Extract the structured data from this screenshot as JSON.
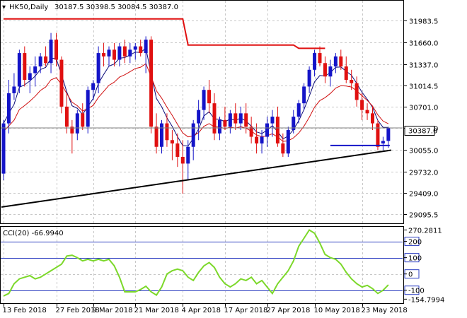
{
  "header": {
    "symbol_label": "HK50,Daily",
    "ohlc_label": "30187.5 30398.5 30084.5 30387.0"
  },
  "price_axis": {
    "ticks": [
      "31983.5",
      "31660.0",
      "31337.0",
      "31014.5",
      "30701.0",
      "30387.0",
      "30055.0",
      "29732.0",
      "29409.0",
      "29095.5"
    ],
    "current_price_label": "30387.0"
  },
  "cci_panel": {
    "title": "CCI(20) -66.9940",
    "axis_labels": [
      "270.2811",
      "200",
      "100",
      "0",
      "-100",
      "-154.7994"
    ]
  },
  "time_axis": {
    "labels": [
      "13 Feb 2018",
      "27 Feb 2018",
      "9 Mar 2018",
      "21 Mar 2018",
      "4 Apr 2018",
      "17 Apr 2018",
      "27 Apr 2018",
      "10 May 2018",
      "23 May 2018"
    ]
  },
  "colors": {
    "bull": "#1414c8",
    "bear": "#e01010",
    "grid": "#c8c8c8",
    "cci_line": "#7cd82a",
    "cci_level": "#2a3cc0",
    "ma_fast": "#0a0a78",
    "ma_slow": "#d01010",
    "upper_line": "#e01010",
    "trend_line": "#000000",
    "support_line": "#1414c8"
  },
  "chart_data": {
    "type": "candlestick",
    "title": "",
    "price_range": [
      29000,
      32250
    ],
    "cci_range": [
      -175,
      285
    ],
    "dates": [
      "13 Feb 2018",
      "27 Feb 2018",
      "9 Mar 2018",
      "21 Mar 2018",
      "4 Apr 2018",
      "17 Apr 2018",
      "27 Apr 2018",
      "10 May 2018",
      "23 May 2018"
    ],
    "candles": [
      [
        29700,
        30500,
        29600,
        30450
      ],
      [
        30450,
        31100,
        30300,
        30900
      ],
      [
        30900,
        31200,
        30800,
        31000
      ],
      [
        31000,
        31550,
        30900,
        31500
      ],
      [
        31500,
        31600,
        31000,
        31100
      ],
      [
        31100,
        31300,
        30900,
        31200
      ],
      [
        31200,
        31450,
        31000,
        31300
      ],
      [
        31300,
        31500,
        31200,
        31450
      ],
      [
        31450,
        31600,
        31300,
        31350
      ],
      [
        31350,
        31800,
        31200,
        31700
      ],
      [
        31700,
        31800,
        31300,
        31400
      ],
      [
        31400,
        31450,
        30600,
        30700
      ],
      [
        30700,
        30900,
        30300,
        30400
      ],
      [
        30400,
        30500,
        30000,
        30300
      ],
      [
        30300,
        30650,
        30200,
        30600
      ],
      [
        30600,
        30750,
        30350,
        30400
      ],
      [
        30400,
        31000,
        30300,
        30950
      ],
      [
        30950,
        31100,
        30800,
        31050
      ],
      [
        31050,
        31600,
        30900,
        31500
      ],
      [
        31500,
        31650,
        31300,
        31450
      ],
      [
        31450,
        31600,
        31300,
        31550
      ],
      [
        31550,
        31650,
        31300,
        31400
      ],
      [
        31400,
        31650,
        31300,
        31600
      ],
      [
        31600,
        31700,
        31350,
        31450
      ],
      [
        31450,
        31650,
        31350,
        31550
      ],
      [
        31550,
        31650,
        31400,
        31600
      ],
      [
        31600,
        31700,
        31450,
        31500
      ],
      [
        31500,
        31750,
        31200,
        31700
      ],
      [
        31700,
        31750,
        30300,
        30400
      ],
      [
        30400,
        30600,
        30000,
        30100
      ],
      [
        30100,
        30500,
        30000,
        30450
      ],
      [
        30450,
        30600,
        30100,
        30200
      ],
      [
        30200,
        30350,
        29900,
        30150
      ],
      [
        30150,
        30300,
        29800,
        29950
      ],
      [
        29950,
        30200,
        29400,
        29850
      ],
      [
        29850,
        30200,
        29600,
        30100
      ],
      [
        30100,
        30500,
        29900,
        30450
      ],
      [
        30450,
        30800,
        30200,
        30650
      ],
      [
        30650,
        31000,
        30500,
        30950
      ],
      [
        30950,
        31100,
        30600,
        30750
      ],
      [
        30750,
        30900,
        30200,
        30300
      ],
      [
        30300,
        30550,
        30200,
        30500
      ],
      [
        30500,
        30700,
        30350,
        30400
      ],
      [
        30400,
        30650,
        30300,
        30600
      ],
      [
        30600,
        30750,
        30350,
        30450
      ],
      [
        30450,
        30700,
        30350,
        30600
      ],
      [
        30600,
        30750,
        30300,
        30400
      ],
      [
        30400,
        30550,
        30150,
        30250
      ],
      [
        30250,
        30450,
        30000,
        30150
      ],
      [
        30150,
        30350,
        30000,
        30250
      ],
      [
        30250,
        30550,
        30100,
        30450
      ],
      [
        30450,
        30650,
        30250,
        30550
      ],
      [
        30550,
        30700,
        30100,
        30150
      ],
      [
        30150,
        30300,
        29950,
        30000
      ],
      [
        30000,
        30400,
        29950,
        30350
      ],
      [
        30350,
        30650,
        30300,
        30550
      ],
      [
        30550,
        30800,
        30450,
        30750
      ],
      [
        30750,
        31050,
        30650,
        31000
      ],
      [
        31000,
        31300,
        30900,
        31250
      ],
      [
        31250,
        31550,
        31150,
        31500
      ],
      [
        31500,
        31600,
        31300,
        31350
      ],
      [
        31350,
        31450,
        31050,
        31150
      ],
      [
        31150,
        31400,
        31000,
        31300
      ],
      [
        31300,
        31500,
        31200,
        31450
      ],
      [
        31450,
        31550,
        31250,
        31300
      ],
      [
        31300,
        31450,
        31050,
        31100
      ],
      [
        31100,
        31250,
        30950,
        31050
      ],
      [
        31050,
        31150,
        30700,
        30800
      ],
      [
        30800,
        30900,
        30500,
        30650
      ],
      [
        30650,
        30750,
        30500,
        30600
      ],
      [
        30600,
        30700,
        30350,
        30450
      ],
      [
        30450,
        30500,
        30050,
        30100
      ],
      [
        30150,
        30250,
        30050,
        30187.5
      ],
      [
        30187.5,
        30398.5,
        30084.5,
        30387
      ]
    ],
    "series": []
  }
}
